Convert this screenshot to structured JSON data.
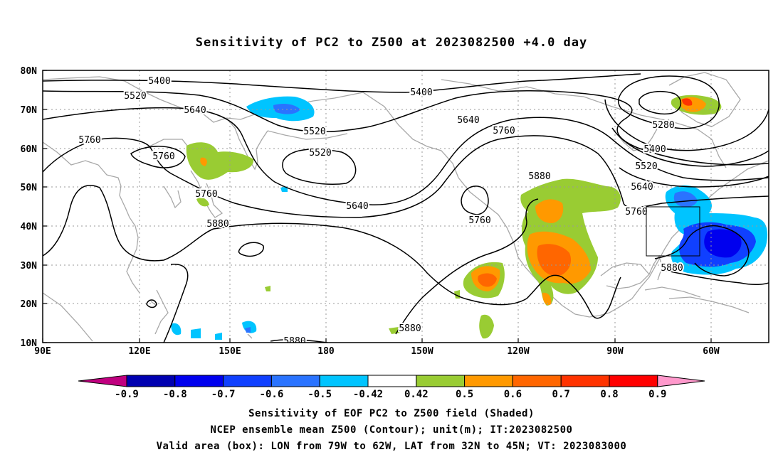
{
  "title": "Sensitivity of PC2 to Z500 at 2023082500 +4.0 day",
  "lat_labels": [
    "80N",
    "70N",
    "60N",
    "50N",
    "40N",
    "30N",
    "20N",
    "10N"
  ],
  "lon_labels": [
    "90E",
    "120E",
    "150E",
    "180",
    "150W",
    "120W",
    "90W",
    "60W"
  ],
  "colorbar": {
    "labels": [
      "-0.9",
      "-0.8",
      "-0.7",
      "-0.6",
      "-0.5",
      "-0.42",
      "0.42",
      "0.5",
      "0.6",
      "0.7",
      "0.8",
      "0.9"
    ],
    "colors": [
      "#c0007f",
      "#0000b0",
      "#0000ee",
      "#1040ff",
      "#2a73ff",
      "#00c4ff",
      "#ffffff",
      "#99cc33",
      "#ff9900",
      "#ff6600",
      "#ff3300",
      "#ff0000",
      "#ff99cc"
    ]
  },
  "contour_labels": [
    {
      "text": "5400"
    },
    {
      "text": "5520"
    },
    {
      "text": "5640"
    },
    {
      "text": "5760"
    },
    {
      "text": "5760"
    },
    {
      "text": "5760"
    },
    {
      "text": "5880"
    },
    {
      "text": "5520"
    },
    {
      "text": "5520"
    },
    {
      "text": "5640"
    },
    {
      "text": "5400"
    },
    {
      "text": "5640"
    },
    {
      "text": "5760"
    },
    {
      "text": "5880"
    },
    {
      "text": "5760"
    },
    {
      "text": "5880"
    },
    {
      "text": "5280"
    },
    {
      "text": "5400"
    },
    {
      "text": "5520"
    },
    {
      "text": "5640"
    },
    {
      "text": "5760"
    },
    {
      "text": "5880"
    },
    {
      "text": "5880"
    }
  ],
  "captions": [
    "Sensitivity of EOF PC2 to Z500 field (Shaded)",
    "NCEP ensemble mean Z500 (Contour); unit(m); IT:2023082500",
    "Valid area (box): LON from 79W to 62W, LAT from 32N to 45N; VT: 2023083000"
  ]
}
